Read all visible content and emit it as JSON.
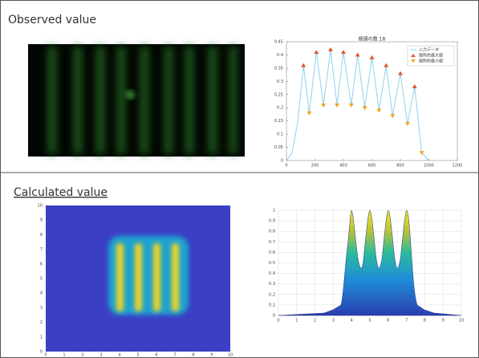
{
  "panels": [
    {
      "heading": "Observed value"
    },
    {
      "heading": "Calculated value"
    }
  ],
  "chart_data": [
    {
      "type": "line",
      "title": "極値の数 18",
      "xlim": [
        0,
        1200
      ],
      "xticks": [
        0,
        200,
        400,
        600,
        800,
        1000,
        1200
      ],
      "ylim": [
        0,
        0.45
      ],
      "yticks": [
        0,
        0.05,
        0.1,
        0.15,
        0.2,
        0.25,
        0.3,
        0.35,
        0.4,
        0.45
      ],
      "legend": "top-right",
      "series": [
        {
          "name": "入力データ",
          "color": "#8fd0ec",
          "marker": "none",
          "x": [
            0,
            40,
            80,
            120,
            160,
            210,
            260,
            310,
            355,
            400,
            455,
            500,
            550,
            600,
            650,
            700,
            745,
            800,
            850,
            900,
            950,
            1000
          ],
          "values": [
            0,
            0.03,
            0.15,
            0.36,
            0.18,
            0.41,
            0.21,
            0.42,
            0.21,
            0.41,
            0.21,
            0.4,
            0.2,
            0.39,
            0.19,
            0.36,
            0.17,
            0.33,
            0.14,
            0.28,
            0.03,
            0
          ]
        },
        {
          "name": "局所的最大値",
          "color": "#e0562a",
          "marker": "up",
          "x": [
            120,
            210,
            310,
            400,
            500,
            600,
            700,
            800,
            900
          ],
          "values": [
            0.36,
            0.41,
            0.42,
            0.41,
            0.4,
            0.39,
            0.36,
            0.33,
            0.28
          ]
        },
        {
          "name": "局所的最小値",
          "color": "#f2a325",
          "marker": "down",
          "x": [
            160,
            260,
            355,
            455,
            550,
            650,
            745,
            850,
            950
          ],
          "values": [
            0.18,
            0.21,
            0.21,
            0.21,
            0.2,
            0.19,
            0.17,
            0.14,
            0.03
          ]
        }
      ]
    },
    {
      "type": "heatmap",
      "xlim": [
        0,
        10
      ],
      "xticks": [
        0,
        1,
        2,
        3,
        4,
        5,
        6,
        7,
        8,
        9,
        10
      ],
      "ylim": [
        0,
        10
      ],
      "yticks": [
        0,
        1,
        2,
        3,
        4,
        5,
        6,
        7,
        8,
        9,
        10
      ]
    },
    {
      "type": "surface",
      "xlim": [
        0,
        10
      ],
      "xticks": [
        0,
        1,
        2,
        3,
        4,
        5,
        6,
        7,
        8,
        9,
        10
      ],
      "ylim": [
        0,
        1
      ],
      "yticks": [
        0,
        0.1,
        0.2,
        0.3,
        0.4,
        0.5,
        0.6,
        0.7,
        0.8,
        0.9,
        1
      ],
      "grid": true
    }
  ]
}
